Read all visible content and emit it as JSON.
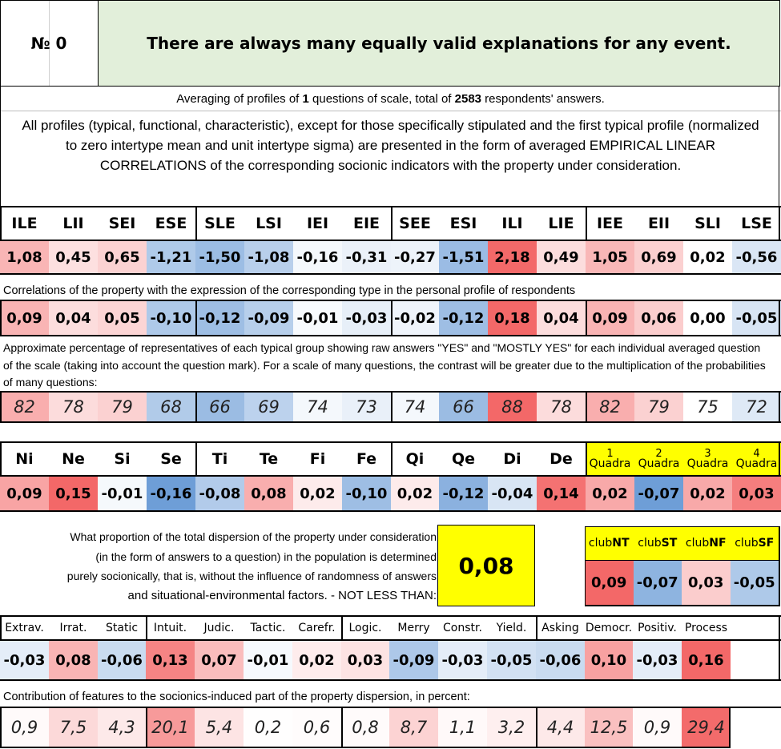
{
  "header": {
    "number_label": "№ 0",
    "statement": "There are always many equally valid explanations for any event."
  },
  "averaging": {
    "prefix": "Averaging of profiles of ",
    "questions": "1",
    "middle": " questions of scale, total of ",
    "respondents": "2583",
    "suffix": " respondents' answers."
  },
  "description": "All profiles (typical, functional, characteristic), except for those specifically stipulated and the first typical profile (normalized to zero intertype mean and unit intertype sigma) are presented in the form of averaged EMPIRICAL LINEAR CORRELATIONS of the corresponding socionic indicators with the property under consideration.",
  "types": {
    "labels": [
      "ILE",
      "LII",
      "SEI",
      "ESE",
      "SLE",
      "LSI",
      "IEI",
      "EIE",
      "SEE",
      "ESI",
      "ILI",
      "LIE",
      "IEE",
      "EII",
      "SLI",
      "LSE"
    ],
    "normalized": [
      "1,08",
      "0,45",
      "0,65",
      "-1,21",
      "-1,50",
      "-1,08",
      "-0,16",
      "-0,31",
      "-0,27",
      "-1,51",
      "2,18",
      "0,49",
      "1,05",
      "0,69",
      "0,02",
      "-0,56"
    ],
    "correlations_note": "Correlations of the property with the expression of the corresponding type in the personal profile of respondents",
    "correlations": [
      "0,09",
      "0,04",
      "0,05",
      "-0,10",
      "-0,12",
      "-0,09",
      "-0,01",
      "-0,03",
      "-0,02",
      "-0,12",
      "0,18",
      "0,04",
      "0,09",
      "0,06",
      "0,00",
      "-0,05"
    ],
    "percent_note": "Approximate percentage of representatives of each typical group showing raw answers \"YES\" and \"MOSTLY YES\" for each individual averaged question of the scale (taking into account the question mark). For a scale of many questions, the contrast will be greater due to the multiplication of the probabilities of many questions:",
    "percentages": [
      "82",
      "78",
      "79",
      "68",
      "66",
      "69",
      "74",
      "73",
      "74",
      "66",
      "88",
      "78",
      "82",
      "79",
      "75",
      "72"
    ]
  },
  "functions": {
    "labels": [
      "Ni",
      "Ne",
      "Si",
      "Se",
      "Ti",
      "Te",
      "Fi",
      "Fe",
      "Qi",
      "Qe",
      "Di",
      "De"
    ],
    "values": [
      "0,09",
      "0,15",
      "-0,01",
      "-0,16",
      "-0,08",
      "0,08",
      "0,02",
      "-0,10",
      "0,02",
      "-0,12",
      "-0,04",
      "0,14"
    ]
  },
  "quadras": {
    "labels": [
      {
        "num": "1",
        "word": "Quadra"
      },
      {
        "num": "2",
        "word": "Quadra"
      },
      {
        "num": "3",
        "word": "Quadra"
      },
      {
        "num": "4",
        "word": "Quadra"
      }
    ],
    "values": [
      "0,02",
      "-0,07",
      "0,02",
      "0,03"
    ]
  },
  "dispersion": {
    "text_lines": [
      "What proportion of the total dispersion of the property under consideration",
      "(in the form of answers to a question) in the population is determined",
      "purely socionically, that is, without the influence of randomness of answers",
      "and situational-environmental factors. - NOT LESS THAN:"
    ],
    "value": "0,08"
  },
  "clubs": {
    "labels": [
      {
        "pre": "club",
        "bold": "NT"
      },
      {
        "pre": "club",
        "bold": "ST"
      },
      {
        "pre": "club",
        "bold": "NF"
      },
      {
        "pre": "club",
        "bold": "SF"
      }
    ],
    "values": [
      "0,09",
      "-0,07",
      "0,03",
      "-0,05"
    ]
  },
  "features": {
    "labels": [
      "Extrav.",
      "Irrat.",
      "Static",
      "Intuit.",
      "Judic.",
      "Tactic.",
      "Carefr.",
      "Logic.",
      "Merry",
      "Constr.",
      "Yield.",
      "Asking",
      "Democr.",
      "Positiv.",
      "Process"
    ],
    "values": [
      "-0,03",
      "0,08",
      "-0,06",
      "0,13",
      "0,07",
      "-0,01",
      "0,02",
      "0,03",
      "-0,09",
      "-0,03",
      "-0,05",
      "-0,06",
      "0,10",
      "-0,03",
      "0,16"
    ],
    "contribution_note": "Contribution of features to the sociolonics-induced part of the property dispersion, in percent:",
    "contributions": [
      "0,9",
      "7,5",
      "4,3",
      "20,1",
      "5,4",
      "0,2",
      "0,6",
      "0,8",
      "8,7",
      "1,1",
      "3,2",
      "4,4",
      "12,5",
      "0,9",
      "29,4"
    ]
  },
  "colors": {
    "header_green": "#e2efda",
    "highlight_yellow": "#ffff00"
  }
}
